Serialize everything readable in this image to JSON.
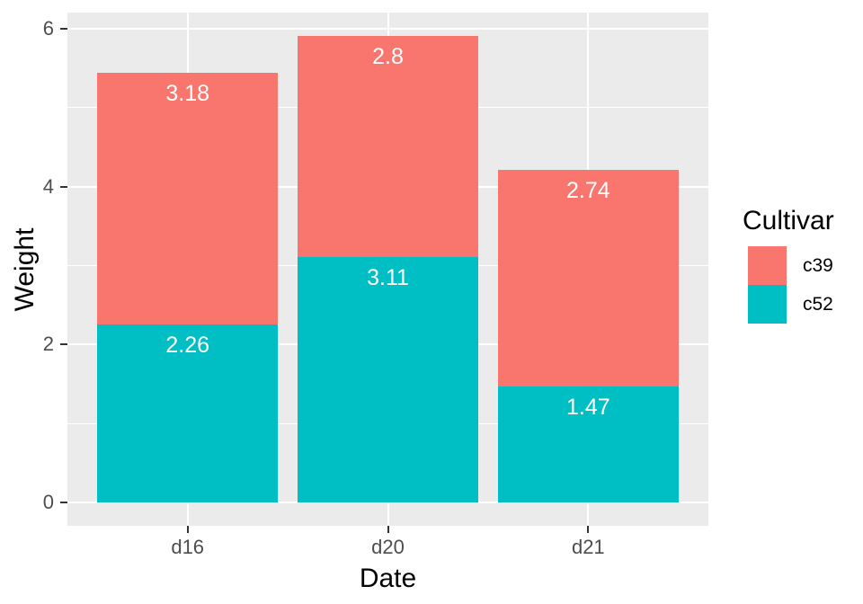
{
  "chart_data": {
    "type": "bar",
    "stacked": true,
    "title": "",
    "xlabel": "Date",
    "ylabel": "Weight",
    "categories": [
      "d16",
      "d20",
      "d21"
    ],
    "series": [
      {
        "name": "c39",
        "color": "#F8766D",
        "values": [
          3.18,
          2.8,
          2.74
        ],
        "labels": [
          "3.18",
          "2.8",
          "2.74"
        ]
      },
      {
        "name": "c52",
        "color": "#00BFC4",
        "values": [
          2.26,
          3.11,
          1.47
        ],
        "labels": [
          "2.26",
          "3.11",
          "1.47"
        ]
      }
    ],
    "stack_order_bottom_to_top": [
      "c52",
      "c39"
    ],
    "totals": [
      5.44,
      5.91,
      4.21
    ],
    "ylim": [
      -0.296,
      6.206
    ],
    "yticks": [
      0,
      2,
      4,
      6
    ],
    "ytick_labels": [
      "0",
      "2",
      "4",
      "6"
    ],
    "yminor": [
      1,
      3,
      5
    ],
    "grid": true,
    "legend_position": "right"
  },
  "axes": {
    "x_title": "Date",
    "y_title": "Weight",
    "x_ticks": [
      "d16",
      "d20",
      "d21"
    ]
  },
  "legend": {
    "title": "Cultivar",
    "items": [
      {
        "label": "c39",
        "color": "#F8766D"
      },
      {
        "label": "c52",
        "color": "#00BFC4"
      }
    ]
  },
  "colors": {
    "panel_bg": "#EBEBEB",
    "grid": "#FFFFFF",
    "tick": "#333333",
    "tick_label": "#4D4D4D",
    "axis_title": "#000000",
    "bar_label_text": "#FFFFFF"
  }
}
